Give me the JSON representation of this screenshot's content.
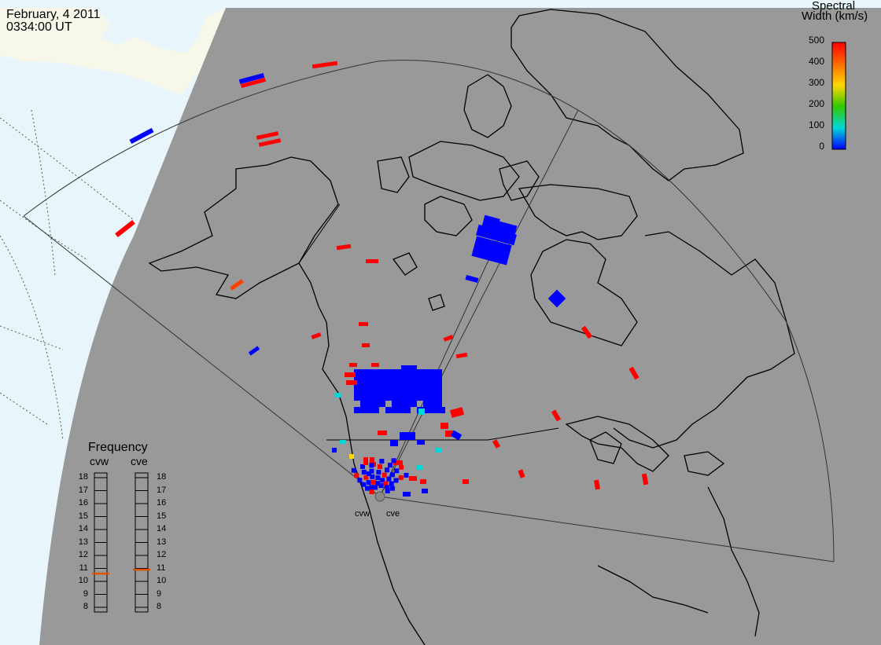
{
  "header": {
    "date": "February, 4 2011",
    "time": "0334:00 UT"
  },
  "colorbar": {
    "title_line1": "Spectral",
    "title_line2": "Width (km/s)",
    "ticks": [
      "500",
      "400",
      "300",
      "200",
      "100",
      "0"
    ],
    "colors": [
      "#ff0000",
      "#ff6a00",
      "#ffd800",
      "#32c800",
      "#00d8d8",
      "#0000ff"
    ]
  },
  "frequency_panel": {
    "title": "Frequency",
    "radars": [
      {
        "label": "cvw",
        "frequency_mhz": 10.6
      },
      {
        "label": "cve",
        "frequency_mhz": 10.9
      }
    ],
    "ticks": [
      "18",
      "17",
      "16",
      "15",
      "14",
      "13",
      "12",
      "11",
      "10",
      "9",
      "8"
    ],
    "marker_color": "#e05000"
  },
  "radar_sites": {
    "west_label": "cvw",
    "east_label": "cve"
  },
  "colors": {
    "night_side": "#999999",
    "day_ocean": "#e8f6fc",
    "day_land": "#f8f8ea",
    "low_width": "#0000ff",
    "high_width": "#ff0000"
  }
}
